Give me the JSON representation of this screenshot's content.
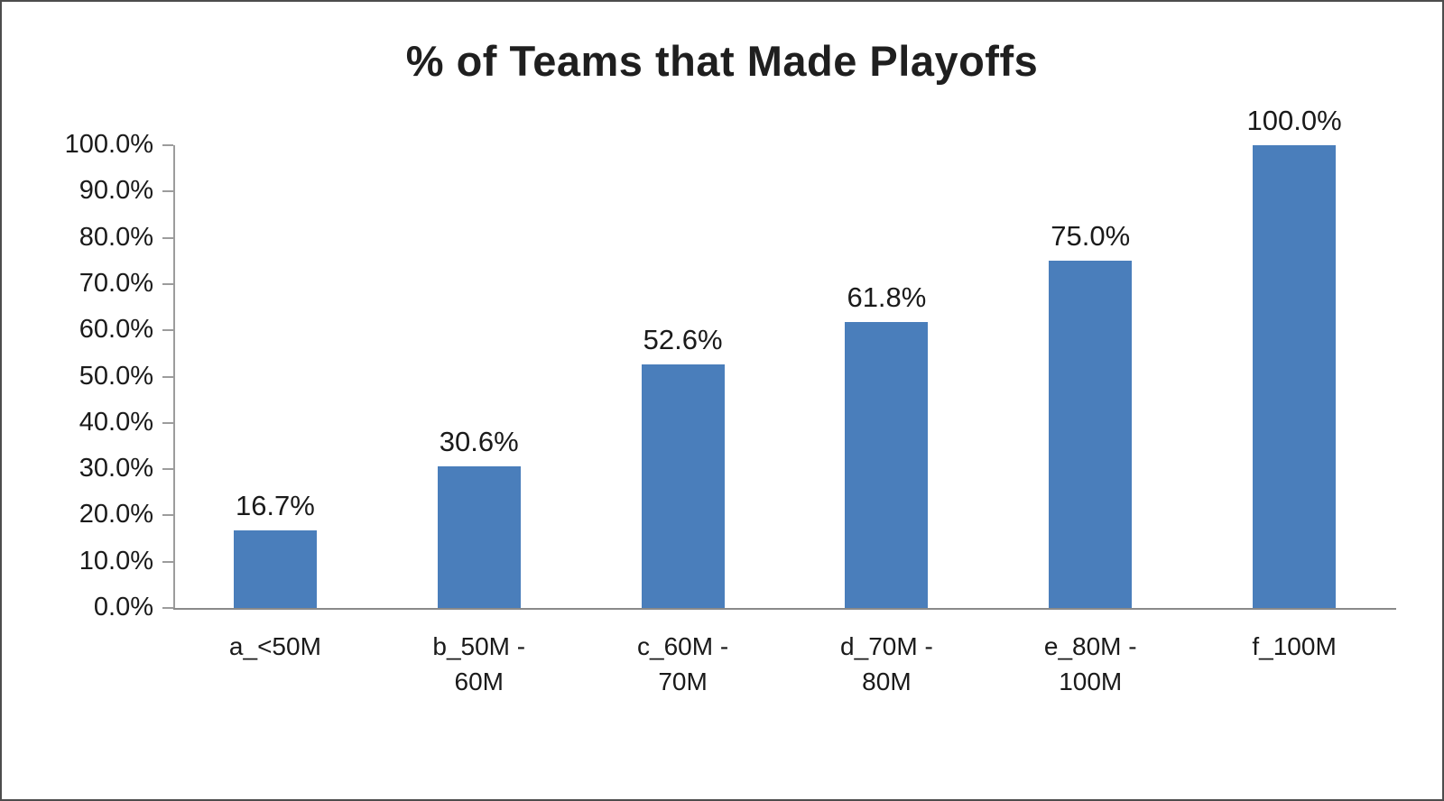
{
  "chart_data": {
    "type": "bar",
    "title": "% of Teams that Made Playoffs",
    "categories": [
      "a_<50M",
      "b_50M - 60M",
      "c_60M - 70M",
      "d_70M - 80M",
      "e_80M - 100M",
      "f_100M"
    ],
    "values": [
      16.7,
      30.6,
      52.6,
      61.8,
      75.0,
      100.0
    ],
    "data_labels": [
      "16.7%",
      "30.6%",
      "52.6%",
      "61.8%",
      "75.0%",
      "100.0%"
    ],
    "y_ticks": [
      "100.0%",
      "90.0%",
      "80.0%",
      "70.0%",
      "60.0%",
      "50.0%",
      "40.0%",
      "30.0%",
      "20.0%",
      "10.0%",
      "0.0%"
    ],
    "ylim": [
      0,
      100
    ],
    "xlabel": "",
    "ylabel": "",
    "grid": false,
    "legend": false,
    "bar_color": "#4a7ebb",
    "axis_color": "#9c9c9c",
    "text_color": "#1a1a1a"
  }
}
